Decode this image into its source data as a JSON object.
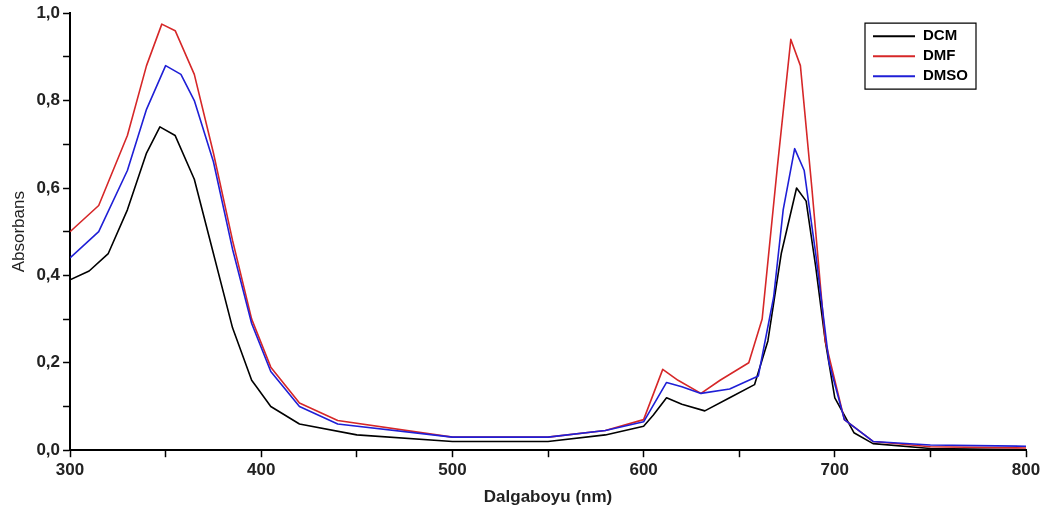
{
  "chart_data": {
    "type": "line",
    "xlabel": "Dalgaboyu (nm)",
    "ylabel": "Absorbans",
    "xlim": [
      300,
      800
    ],
    "ylim": [
      0,
      1
    ],
    "xticks": [
      300,
      {
        "value": 350,
        "label": null
      },
      400,
      {
        "value": 450,
        "label": null
      },
      500,
      {
        "value": 550,
        "label": null
      },
      600,
      {
        "value": 650,
        "label": null
      },
      700,
      {
        "value": 750,
        "label": null
      },
      800
    ],
    "yticks": [
      {
        "value": 0,
        "label": "0,0"
      },
      {
        "value": 0.1,
        "label": null
      },
      {
        "value": 0.2,
        "label": "0,2"
      },
      {
        "value": 0.3,
        "label": null
      },
      {
        "value": 0.4,
        "label": "0,4"
      },
      {
        "value": 0.5,
        "label": null
      },
      {
        "value": 0.6,
        "label": "0,6"
      },
      {
        "value": 0.7,
        "label": null
      },
      {
        "value": 0.8,
        "label": "0,8"
      },
      {
        "value": 0.9,
        "label": null
      },
      {
        "value": 1,
        "label": "1,0"
      }
    ],
    "grid": false,
    "legend": "top right",
    "marker": "none",
    "line_style": "solid",
    "series": [
      {
        "name": "DCM",
        "color": "#000000",
        "x": [
          300,
          310,
          320,
          330,
          340,
          347,
          355,
          365,
          375,
          385,
          395,
          405,
          420,
          450,
          500,
          550,
          580,
          600,
          605,
          612,
          620,
          632,
          645,
          658,
          665,
          672,
          680,
          685,
          690,
          695,
          700,
          710,
          720,
          750,
          800
        ],
        "values": [
          0.39,
          0.41,
          0.45,
          0.55,
          0.68,
          0.74,
          0.72,
          0.62,
          0.45,
          0.28,
          0.16,
          0.1,
          0.06,
          0.035,
          0.02,
          0.02,
          0.035,
          0.055,
          0.08,
          0.12,
          0.105,
          0.09,
          0.12,
          0.15,
          0.25,
          0.45,
          0.6,
          0.57,
          0.42,
          0.25,
          0.12,
          0.04,
          0.015,
          0.004,
          0.001
        ]
      },
      {
        "name": "DMF",
        "color": "#d62728",
        "x": [
          300,
          315,
          330,
          340,
          348,
          355,
          365,
          375,
          385,
          395,
          405,
          420,
          440,
          500,
          550,
          580,
          600,
          610,
          618,
          630,
          640,
          655,
          662,
          670,
          677,
          682,
          688,
          695,
          705,
          720,
          750,
          800
        ],
        "values": [
          0.5,
          0.56,
          0.72,
          0.88,
          0.975,
          0.96,
          0.86,
          0.68,
          0.48,
          0.3,
          0.19,
          0.108,
          0.068,
          0.03,
          0.03,
          0.045,
          0.07,
          0.185,
          0.16,
          0.13,
          0.16,
          0.2,
          0.3,
          0.65,
          0.94,
          0.88,
          0.6,
          0.25,
          0.07,
          0.02,
          0.008,
          0.005
        ]
      },
      {
        "name": "DMSO",
        "color": "#1f1fd6",
        "x": [
          300,
          315,
          330,
          340,
          350,
          358,
          365,
          375,
          385,
          395,
          405,
          420,
          440,
          500,
          550,
          580,
          600,
          612,
          620,
          630,
          645,
          660,
          668,
          673,
          679,
          684,
          690,
          697,
          705,
          720,
          750,
          800
        ],
        "values": [
          0.44,
          0.5,
          0.64,
          0.78,
          0.88,
          0.86,
          0.8,
          0.66,
          0.46,
          0.29,
          0.18,
          0.1,
          0.06,
          0.03,
          0.03,
          0.045,
          0.065,
          0.155,
          0.145,
          0.13,
          0.14,
          0.17,
          0.35,
          0.55,
          0.69,
          0.64,
          0.45,
          0.2,
          0.07,
          0.02,
          0.012,
          0.009
        ]
      }
    ]
  }
}
